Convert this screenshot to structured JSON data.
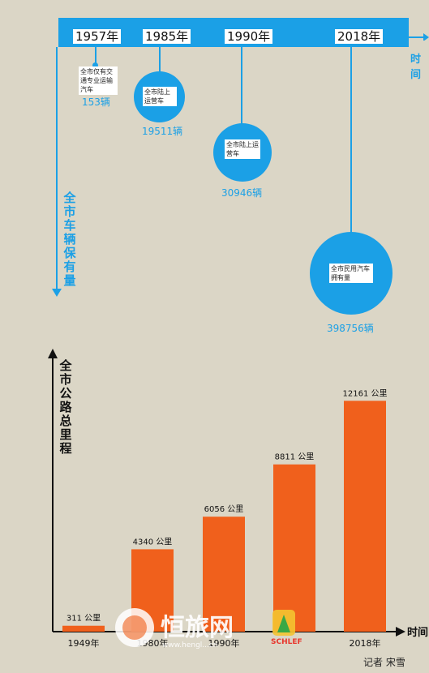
{
  "timeline": {
    "axis_time": "时间",
    "axis_vehicles": "全市车辆保有量",
    "events": [
      {
        "year": "1957年",
        "note": "全市仅有交通专业运输汽车",
        "count": "153辆"
      },
      {
        "year": "1985年",
        "note": "全市陆上运营车",
        "count": "19511辆"
      },
      {
        "year": "1990年",
        "note": "全市陆上运营车",
        "count": "30946辆"
      },
      {
        "year": "2018年",
        "note": "全市民用汽车拥有量",
        "count": "398756辆"
      }
    ],
    "colors": {
      "accent": "#1ba0e6"
    }
  },
  "chart_data": {
    "type": "bar",
    "title": "全市公路总里程",
    "xlabel": "时间",
    "categories": [
      "1949年",
      "1980年",
      "1990年",
      "",
      "2018年"
    ],
    "values": [
      311,
      4340,
      6056,
      8811,
      12161
    ],
    "value_labels": [
      "311 公里",
      "4340 公里",
      "6056 公里",
      "8811 公里",
      "12161 公里"
    ],
    "ylim": [
      0,
      13200
    ],
    "colors": {
      "bar": "#f0601c",
      "axis": "#111111"
    }
  },
  "watermark": {
    "brand": "恒旅网",
    "url": "www.hengl...cn",
    "logo_text": "SCHLEF"
  },
  "credit": "记者 宋雪"
}
